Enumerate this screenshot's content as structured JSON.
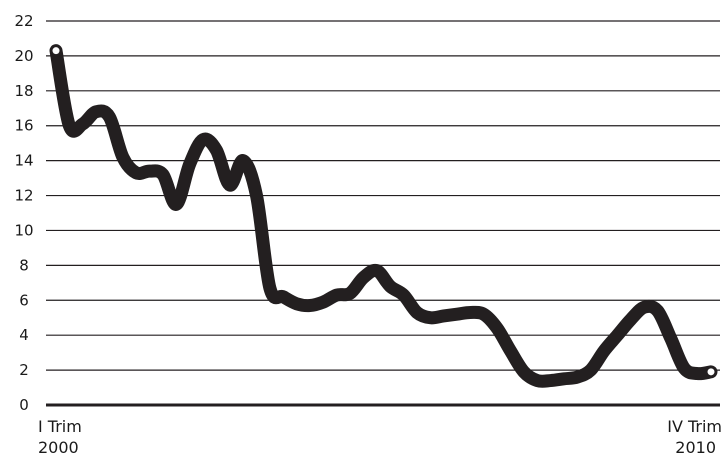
{
  "chart_data": {
    "type": "line",
    "title": "",
    "xlabel": "",
    "ylabel": "",
    "ylim": [
      0,
      22
    ],
    "y_ticks": [
      0,
      2,
      4,
      6,
      8,
      10,
      12,
      14,
      16,
      18,
      20,
      22
    ],
    "grid": true,
    "legend": "none",
    "x_start_label": {
      "line1": "I Trim",
      "line2": "2000"
    },
    "x_end_label": {
      "line1": "IV Trim",
      "line2": "2010"
    },
    "line_color": "#231f20",
    "grid_color": "#231f20",
    "series": [
      {
        "values": [
          20.3,
          16.0,
          16.1,
          16.8,
          16.5,
          14.2,
          13.3,
          13.4,
          13.2,
          11.5,
          13.8,
          15.2,
          14.6,
          12.6,
          14.0,
          12.0,
          6.7,
          6.2,
          5.8,
          5.7,
          5.9,
          6.3,
          6.4,
          7.3,
          7.7,
          6.8,
          6.3,
          5.3,
          5.0,
          5.1,
          5.2,
          5.3,
          5.2,
          4.4,
          3.1,
          1.9,
          1.4,
          1.4,
          1.5,
          1.6,
          2.0,
          3.1,
          4.0,
          4.9,
          5.6,
          5.4,
          3.8,
          2.1,
          1.8,
          1.9
        ]
      }
    ]
  }
}
